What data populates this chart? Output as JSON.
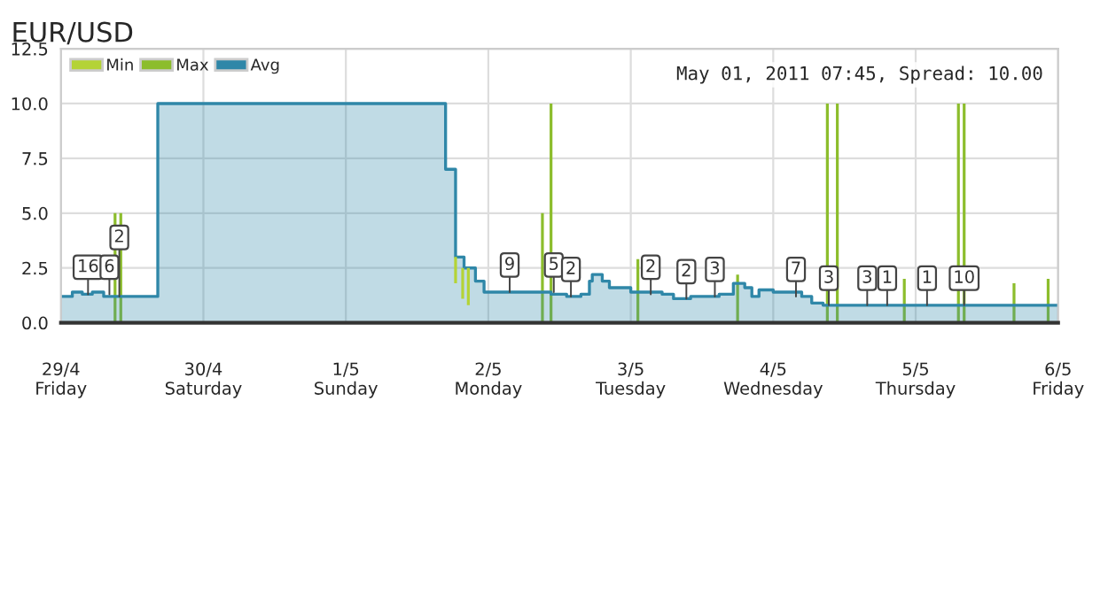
{
  "chart_data": {
    "type": "area",
    "title": "EUR/USD",
    "xlim": [
      "2011-04-29",
      "2011-05-06"
    ],
    "xticks": [
      {
        "value": "2011-04-29",
        "label": "29/4\nFriday"
      },
      {
        "value": "2011-04-30",
        "label": "30/4\nSaturday"
      },
      {
        "value": "2011-05-01",
        "label": "1/5\nSunday"
      },
      {
        "value": "2011-05-02",
        "label": "2/5\nMonday"
      },
      {
        "value": "2011-05-03",
        "label": "3/5\nTuesday"
      },
      {
        "value": "2011-05-04",
        "label": "4/5\nWednesday"
      },
      {
        "value": "2011-05-05",
        "label": "5/5\nThursday"
      },
      {
        "value": "2011-05-06",
        "label": "6/5\nFriday"
      }
    ],
    "ylim": [
      0,
      12.5
    ],
    "yticks": [
      {
        "value": 0,
        "label": "0.0"
      },
      {
        "value": 2.5,
        "label": "2.5"
      },
      {
        "value": 5,
        "label": "5.0"
      },
      {
        "value": 7.5,
        "label": "7.5"
      },
      {
        "value": 10,
        "label": "10.0"
      },
      {
        "value": 12.5,
        "label": "12.5"
      }
    ],
    "grid": true,
    "legend": "top left",
    "series": [
      {
        "name": "Min",
        "type": "bar",
        "color": "#b4d336",
        "x": [
          "2011-05-01T18:29",
          "2011-05-01T19:41",
          "2011-05-01T20:38"
        ],
        "base": [
          3.0,
          2.5,
          2.5
        ],
        "values": [
          -1.2,
          -1.4,
          -1.7
        ]
      },
      {
        "name": "Max",
        "type": "bar",
        "color": "#8cbd2c",
        "x": [
          "2011-04-29T09:07",
          "2011-04-29T10:05",
          "2011-05-02T09:07",
          "2011-05-02T10:34",
          "2011-05-03T01:12",
          "2011-05-03T18:00",
          "2011-05-04T09:07",
          "2011-05-04T10:48",
          "2011-05-04T22:05",
          "2011-05-05T07:12",
          "2011-05-05T08:10",
          "2011-05-05T16:34",
          "2011-05-05T22:19"
        ],
        "values": [
          5.0,
          5.0,
          5.0,
          10.0,
          2.9,
          2.2,
          10.0,
          10.0,
          2.0,
          10.0,
          10.0,
          1.8,
          2.0
        ]
      },
      {
        "name": "Avg",
        "color": "#2f87a8",
        "x": [
          "2011-04-29T00:00",
          "2011-04-29T01:55",
          "2011-04-29T01:55",
          "2011-04-29T03:36",
          "2011-04-29T03:36",
          "2011-04-29T05:17",
          "2011-04-29T05:17",
          "2011-04-29T07:12",
          "2011-04-29T07:12",
          "2011-04-29T16:19",
          "2011-04-29T16:19",
          "2011-05-01T16:48",
          "2011-05-01T16:48",
          "2011-05-01T18:29",
          "2011-05-01T18:29",
          "2011-05-01T19:55",
          "2011-05-01T19:55",
          "2011-05-01T21:50",
          "2011-05-01T21:50",
          "2011-05-01T23:17",
          "2011-05-01T23:17",
          "2011-05-02T10:34",
          "2011-05-02T10:34",
          "2011-05-02T13:12",
          "2011-05-02T13:12",
          "2011-05-02T15:36",
          "2011-05-02T15:36",
          "2011-05-02T17:02",
          "2011-05-02T17:02",
          "2011-05-02T17:31",
          "2011-05-02T17:31",
          "2011-05-02T19:12",
          "2011-05-02T19:12",
          "2011-05-02T20:24",
          "2011-05-02T20:24",
          "2011-05-03T00:00",
          "2011-05-03T00:00",
          "2011-05-03T05:17",
          "2011-05-03T05:17",
          "2011-05-03T07:12",
          "2011-05-03T07:12",
          "2011-05-03T10:05",
          "2011-05-03T10:05",
          "2011-05-03T14:53",
          "2011-05-03T14:53",
          "2011-05-03T17:17",
          "2011-05-03T17:17",
          "2011-05-03T19:12",
          "2011-05-03T19:12",
          "2011-05-03T20:24",
          "2011-05-03T20:24",
          "2011-05-03T21:36",
          "2011-05-03T21:36",
          "2011-05-04T00:00",
          "2011-05-04T00:00",
          "2011-05-04T04:48",
          "2011-05-04T04:48",
          "2011-05-04T06:29",
          "2011-05-04T06:29",
          "2011-05-04T08:24",
          "2011-05-04T08:24",
          "2011-05-06T00:00"
        ],
        "values": [
          1.2,
          1.2,
          1.4,
          1.4,
          1.3,
          1.3,
          1.4,
          1.4,
          1.2,
          1.2,
          10.0,
          10.0,
          7.0,
          7.0,
          3.0,
          3.0,
          2.5,
          2.5,
          1.9,
          1.9,
          1.4,
          1.4,
          1.3,
          1.3,
          1.2,
          1.2,
          1.3,
          1.3,
          1.9,
          1.9,
          2.2,
          2.2,
          1.9,
          1.9,
          1.6,
          1.6,
          1.4,
          1.4,
          1.3,
          1.3,
          1.1,
          1.1,
          1.2,
          1.2,
          1.3,
          1.3,
          1.8,
          1.8,
          1.6,
          1.6,
          1.2,
          1.2,
          1.5,
          1.5,
          1.4,
          1.4,
          1.2,
          1.2,
          0.9,
          0.9,
          0.8,
          0.8
        ]
      }
    ],
    "annotations": [
      "May 01, 2011 07:45, Spread: 10.00",
      {
        "text": "16",
        "x": "2011-04-29T04:34",
        "y": 1.3
      },
      {
        "text": "6",
        "x": "2011-04-29T08:10",
        "y": 1.3
      },
      {
        "text": "2",
        "x": "2011-04-29T09:50",
        "y": 1.2
      },
      {
        "text": "9",
        "x": "2011-05-02T03:36",
        "y": 1.4
      },
      {
        "text": "5",
        "x": "2011-05-02T11:02",
        "y": 1.4
      },
      {
        "text": "2",
        "x": "2011-05-02T13:55",
        "y": 1.2
      },
      {
        "text": "2",
        "x": "2011-05-03T03:22",
        "y": 1.3
      },
      {
        "text": "2",
        "x": "2011-05-03T09:22",
        "y": 1.1
      },
      {
        "text": "3",
        "x": "2011-05-03T14:10",
        "y": 1.2
      },
      {
        "text": "7",
        "x": "2011-05-04T03:50",
        "y": 1.2
      },
      {
        "text": "3",
        "x": "2011-05-04T09:22",
        "y": 0.8
      },
      {
        "text": "3",
        "x": "2011-05-04T15:50",
        "y": 0.8
      },
      {
        "text": "1",
        "x": "2011-05-04T19:12",
        "y": 0.8
      },
      {
        "text": "1",
        "x": "2011-05-05T01:55",
        "y": 0.8
      },
      {
        "text": "10",
        "x": "2011-05-05T08:10",
        "y": 0.8
      }
    ]
  }
}
